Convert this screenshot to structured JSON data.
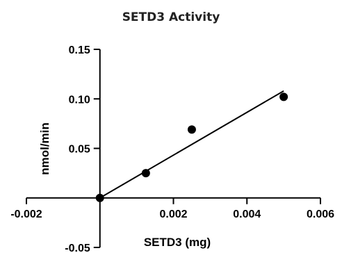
{
  "chart_data": {
    "type": "scatter",
    "title": "SETD3 Activity",
    "xlabel": "SETD3 (mg)",
    "ylabel": "nmol/min",
    "xlim": [
      -0.002,
      0.006
    ],
    "ylim": [
      -0.05,
      0.15
    ],
    "xticks": [
      -0.002,
      0.002,
      0.004,
      0.006
    ],
    "xtick_labels": [
      "-0.002",
      "0.002",
      "0.004",
      "0.006"
    ],
    "yticks": [
      -0.05,
      0.05,
      0.1,
      0.15
    ],
    "ytick_labels": [
      "-0.05",
      "0.05",
      "0.10",
      "0.15"
    ],
    "grid": false,
    "legend": "none",
    "series": [
      {
        "points": [
          {
            "x": 0.0,
            "y": 0.0
          },
          {
            "x": 0.00125,
            "y": 0.025
          },
          {
            "x": 0.0025,
            "y": 0.069
          },
          {
            "x": 0.005,
            "y": 0.102
          }
        ],
        "color": "#000000"
      }
    ],
    "fit_line": {
      "x": [
        0.0,
        0.005
      ],
      "y": [
        0.0,
        0.108
      ],
      "color": "#000000"
    }
  }
}
